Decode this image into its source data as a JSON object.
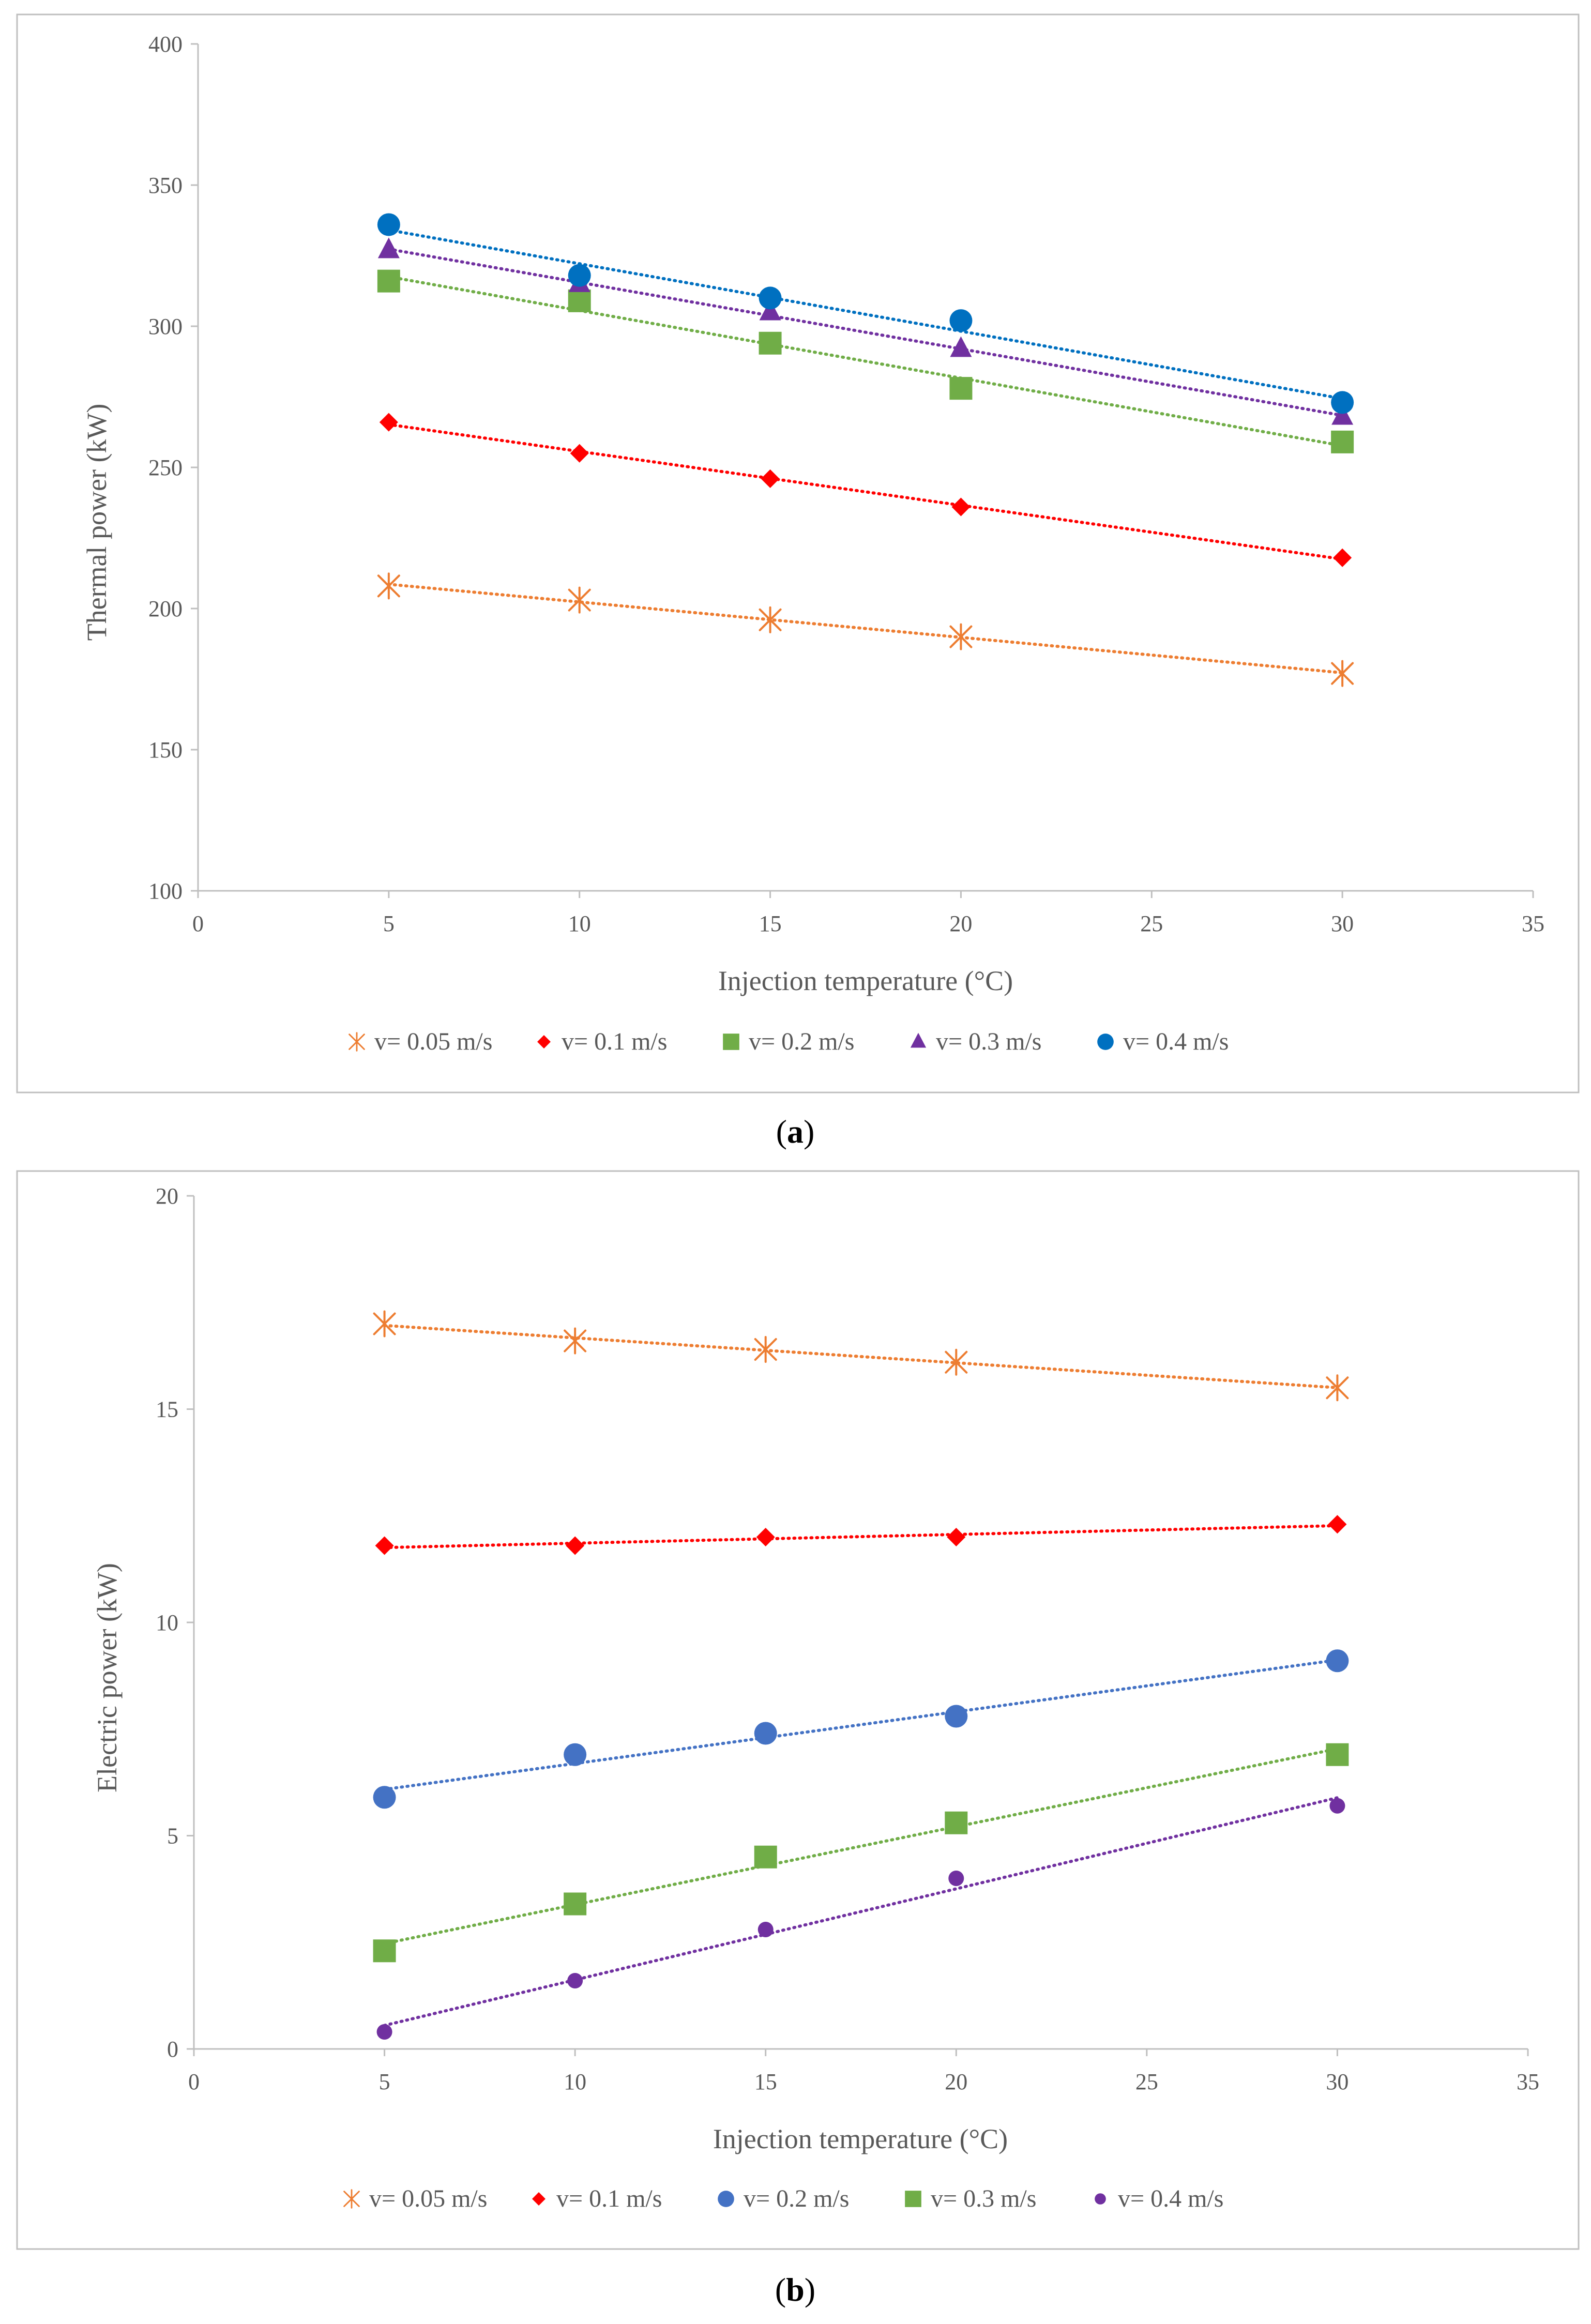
{
  "colors": {
    "orange": "#ED7D31",
    "red": "#FF0000",
    "green": "#70AD47",
    "purple": "#7030A0",
    "blue": "#0070C0",
    "lightblue": "#4472C4",
    "violet": "#7030A0"
  },
  "chart_data": [
    {
      "type": "scatter",
      "panel": "a",
      "xlabel": "Injection temperature (°C)",
      "ylabel": "Thermal power (kW)",
      "xlim": [
        0,
        35
      ],
      "ylim": [
        100,
        400
      ],
      "xticks": [
        0,
        5,
        10,
        15,
        20,
        25,
        30,
        35
      ],
      "yticks": [
        100,
        150,
        200,
        250,
        300,
        350,
        400
      ],
      "trendlines": "linear, dotted",
      "legend_position": "bottom",
      "series": [
        {
          "name": "v= 0.05 m/s",
          "marker": "asterisk",
          "color": "#ED7D31",
          "x": [
            5,
            10,
            15,
            20,
            30
          ],
          "y": [
            208,
            203,
            196,
            190,
            177
          ]
        },
        {
          "name": "v= 0.1 m/s",
          "marker": "diamond",
          "color": "#FF0000",
          "x": [
            5,
            10,
            15,
            20,
            30
          ],
          "y": [
            266,
            255,
            246,
            236,
            218
          ]
        },
        {
          "name": "v= 0.2 m/s",
          "marker": "square",
          "color": "#70AD47",
          "x": [
            5,
            10,
            15,
            20,
            30
          ],
          "y": [
            316,
            309,
            294,
            278,
            259
          ]
        },
        {
          "name": "v= 0.3 m/s",
          "marker": "triangle",
          "color": "#7030A0",
          "x": [
            5,
            10,
            15,
            20,
            30
          ],
          "y": [
            327,
            315,
            305,
            292,
            268
          ]
        },
        {
          "name": "v= 0.4 m/s",
          "marker": "circle",
          "color": "#0070C0",
          "x": [
            5,
            10,
            15,
            20,
            30
          ],
          "y": [
            336,
            318,
            310,
            302,
            273
          ]
        }
      ]
    },
    {
      "type": "scatter",
      "panel": "b",
      "xlabel": "Injection temperature (°C)",
      "ylabel": "Electric power (kW)",
      "xlim": [
        0,
        35
      ],
      "ylim": [
        0,
        20
      ],
      "xticks": [
        0,
        5,
        10,
        15,
        20,
        25,
        30,
        35
      ],
      "yticks": [
        0,
        5,
        10,
        15,
        20
      ],
      "trendlines": "linear, dotted",
      "legend_position": "bottom",
      "series": [
        {
          "name": "v= 0.05 m/s",
          "marker": "asterisk",
          "color": "#ED7D31",
          "x": [
            5,
            10,
            15,
            20,
            30
          ],
          "y": [
            17.0,
            16.6,
            16.4,
            16.1,
            15.5
          ]
        },
        {
          "name": "v= 0.1 m/s",
          "marker": "diamond",
          "color": "#FF0000",
          "x": [
            5,
            10,
            15,
            20,
            30
          ],
          "y": [
            11.8,
            11.8,
            12.0,
            12.0,
            12.3
          ]
        },
        {
          "name": "v= 0.2 m/s",
          "marker": "circle",
          "color": "#4472C4",
          "x": [
            5,
            10,
            15,
            20,
            30
          ],
          "y": [
            5.9,
            6.9,
            7.4,
            7.8,
            9.1
          ]
        },
        {
          "name": "v= 0.3 m/s",
          "marker": "square",
          "color": "#70AD47",
          "x": [
            5,
            10,
            15,
            20,
            30
          ],
          "y": [
            2.3,
            3.4,
            4.5,
            5.3,
            6.9
          ]
        },
        {
          "name": "v= 0.4 m/s",
          "marker": "smallcircle",
          "color": "#7030A0",
          "x": [
            5,
            10,
            15,
            20,
            30
          ],
          "y": [
            0.4,
            1.6,
            2.8,
            4.0,
            5.7
          ]
        }
      ]
    }
  ],
  "labels": {
    "panel_a_open": "(",
    "panel_a_letter": "a",
    "panel_a_close": ")",
    "panel_b_open": "(",
    "panel_b_letter": "b",
    "panel_b_close": ")"
  }
}
